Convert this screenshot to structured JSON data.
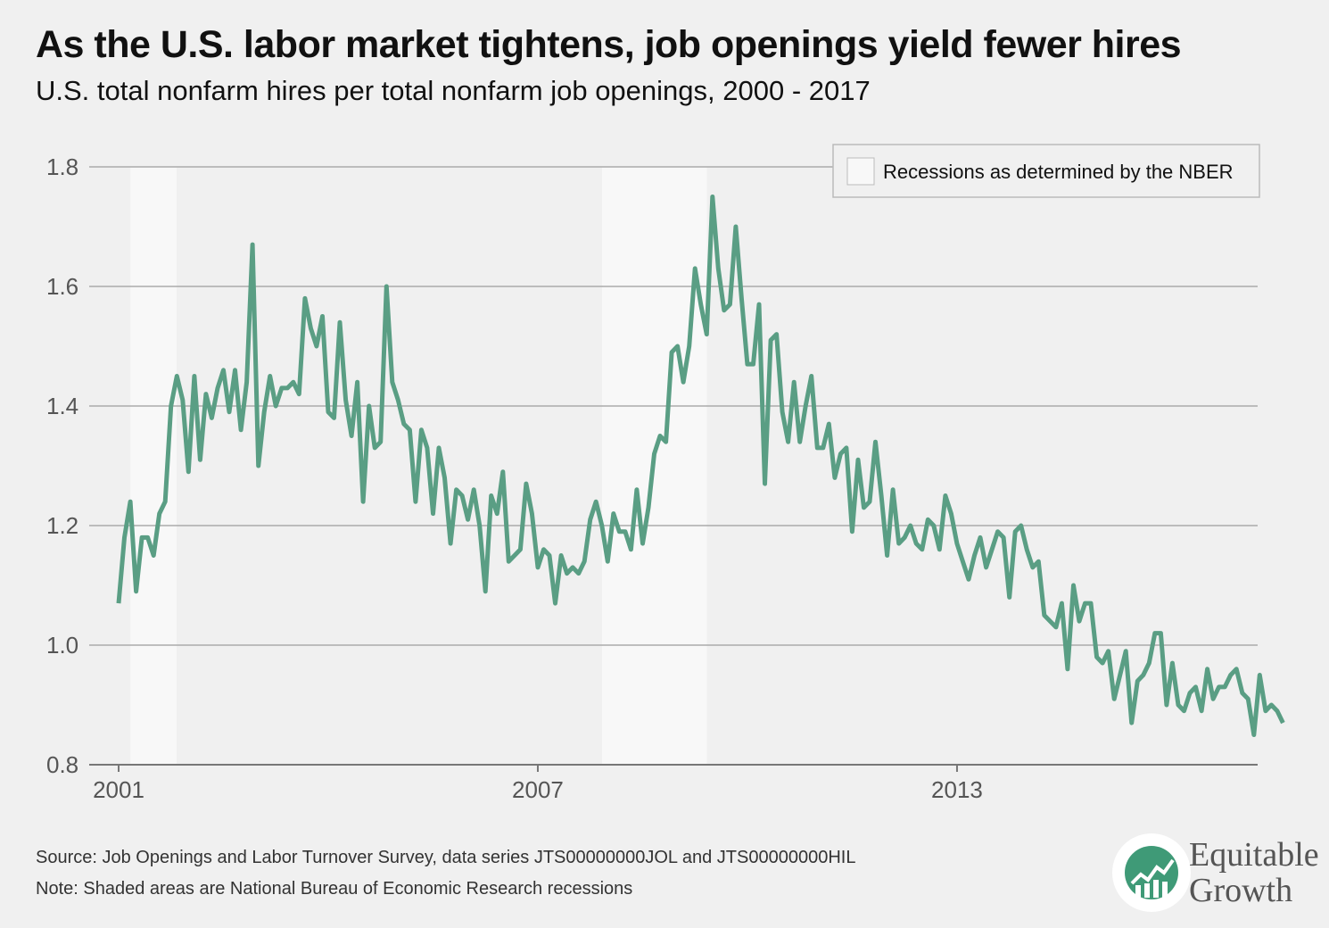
{
  "title": "As the U.S. labor market tightens, job openings yield fewer hires",
  "subtitle": "U.S. total nonfarm hires per total nonfarm job openings, 2000 - 2017",
  "legend_label": "Recessions as determined by the NBER",
  "source": "Source: Job Openings and Labor Turnover Survey, data series JTS00000000JOL and JTS00000000HIL",
  "note": "Note: Shaded areas are National Bureau of Economic Research recessions",
  "logo": {
    "line1": "Equitable",
    "line2": "Growth"
  },
  "colors": {
    "line": "#5a9e84",
    "background": "#f0f0f0",
    "recession": "#f8f8f8",
    "grid": "#aaaaaa",
    "logo_green": "#3f9a77"
  },
  "chart_data": {
    "type": "line",
    "xticks": [
      2001,
      2007,
      2013
    ],
    "yticks": [
      "0.8",
      "1.0",
      "1.2",
      "1.4",
      "1.6",
      "1.8"
    ],
    "ylim": [
      0.8,
      1.8
    ],
    "xlim": [
      2001.0,
      2017.25
    ],
    "grid": true,
    "legend_position": "top-right",
    "recessions": [
      [
        2001.17,
        2001.83
      ],
      [
        2007.92,
        2009.42
      ]
    ],
    "series": [
      {
        "x_start": 2001.0,
        "x_step": 0.08333,
        "values": [
          1.07,
          1.18,
          1.24,
          1.09,
          1.18,
          1.18,
          1.15,
          1.22,
          1.24,
          1.4,
          1.45,
          1.41,
          1.29,
          1.45,
          1.31,
          1.42,
          1.38,
          1.43,
          1.46,
          1.39,
          1.46,
          1.36,
          1.44,
          1.67,
          1.3,
          1.39,
          1.45,
          1.4,
          1.43,
          1.43,
          1.44,
          1.42,
          1.58,
          1.53,
          1.5,
          1.55,
          1.39,
          1.38,
          1.54,
          1.41,
          1.35,
          1.44,
          1.24,
          1.4,
          1.33,
          1.34,
          1.6,
          1.44,
          1.41,
          1.37,
          1.36,
          1.24,
          1.36,
          1.33,
          1.22,
          1.33,
          1.28,
          1.17,
          1.26,
          1.25,
          1.21,
          1.26,
          1.2,
          1.09,
          1.25,
          1.22,
          1.29,
          1.14,
          1.15,
          1.16,
          1.27,
          1.22,
          1.13,
          1.16,
          1.15,
          1.07,
          1.15,
          1.12,
          1.13,
          1.12,
          1.14,
          1.21,
          1.24,
          1.2,
          1.14,
          1.22,
          1.19,
          1.19,
          1.16,
          1.26,
          1.17,
          1.23,
          1.32,
          1.35,
          1.34,
          1.49,
          1.5,
          1.44,
          1.5,
          1.63,
          1.57,
          1.52,
          1.75,
          1.63,
          1.56,
          1.57,
          1.7,
          1.58,
          1.47,
          1.47,
          1.57,
          1.27,
          1.51,
          1.52,
          1.39,
          1.34,
          1.44,
          1.34,
          1.4,
          1.45,
          1.33,
          1.33,
          1.37,
          1.28,
          1.32,
          1.33,
          1.19,
          1.31,
          1.23,
          1.24,
          1.34,
          1.25,
          1.15,
          1.26,
          1.17,
          1.18,
          1.2,
          1.17,
          1.16,
          1.21,
          1.2,
          1.16,
          1.25,
          1.22,
          1.17,
          1.14,
          1.11,
          1.15,
          1.18,
          1.13,
          1.16,
          1.19,
          1.18,
          1.08,
          1.19,
          1.2,
          1.16,
          1.13,
          1.14,
          1.05,
          1.04,
          1.03,
          1.07,
          0.96,
          1.1,
          1.04,
          1.07,
          1.07,
          0.98,
          0.97,
          0.99,
          0.91,
          0.95,
          0.99,
          0.87,
          0.94,
          0.95,
          0.97,
          1.02,
          1.02,
          0.9,
          0.97,
          0.9,
          0.89,
          0.92,
          0.93,
          0.89,
          0.96,
          0.91,
          0.93,
          0.93,
          0.95,
          0.96,
          0.92,
          0.91,
          0.85,
          0.95,
          0.89,
          0.9,
          0.89,
          0.87
        ]
      }
    ]
  }
}
